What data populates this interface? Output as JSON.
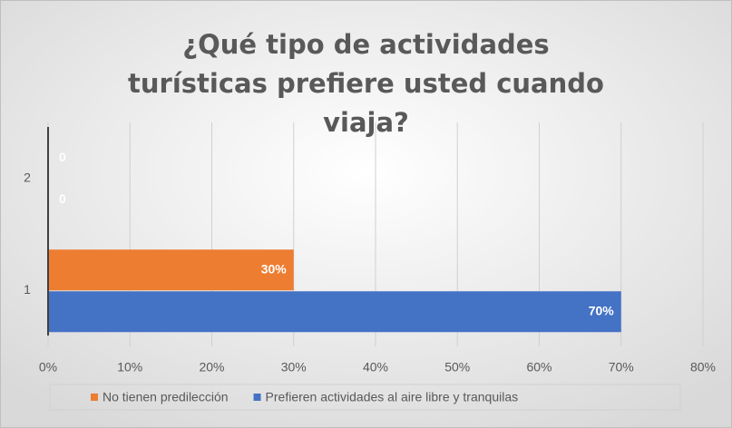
{
  "chart_data": {
    "type": "hbar",
    "title": "¿Qué tipo de actividades turísticas prefiere usted cuando viaja?",
    "categories": [
      "1",
      "2"
    ],
    "series": [
      {
        "name": "No tienen predilección",
        "color": "#ed7d31",
        "values": [
          30,
          0
        ],
        "value_labels": [
          "30%",
          "0"
        ]
      },
      {
        "name": "Prefieren actividades al aire libre y tranquilas",
        "color": "#4472c4",
        "values": [
          70,
          0
        ],
        "value_labels": [
          "70%",
          "0"
        ]
      }
    ],
    "xlim": [
      0,
      80
    ],
    "xticks": [
      {
        "value": 0,
        "label": "0%"
      },
      {
        "value": 10,
        "label": "10%"
      },
      {
        "value": 20,
        "label": "20%"
      },
      {
        "value": 30,
        "label": "30%"
      },
      {
        "value": 40,
        "label": "40%"
      },
      {
        "value": 50,
        "label": "50%"
      },
      {
        "value": 60,
        "label": "60%"
      },
      {
        "value": 70,
        "label": "70%"
      },
      {
        "value": 80,
        "label": "80%"
      }
    ],
    "grid": true,
    "legend": "bottom"
  }
}
